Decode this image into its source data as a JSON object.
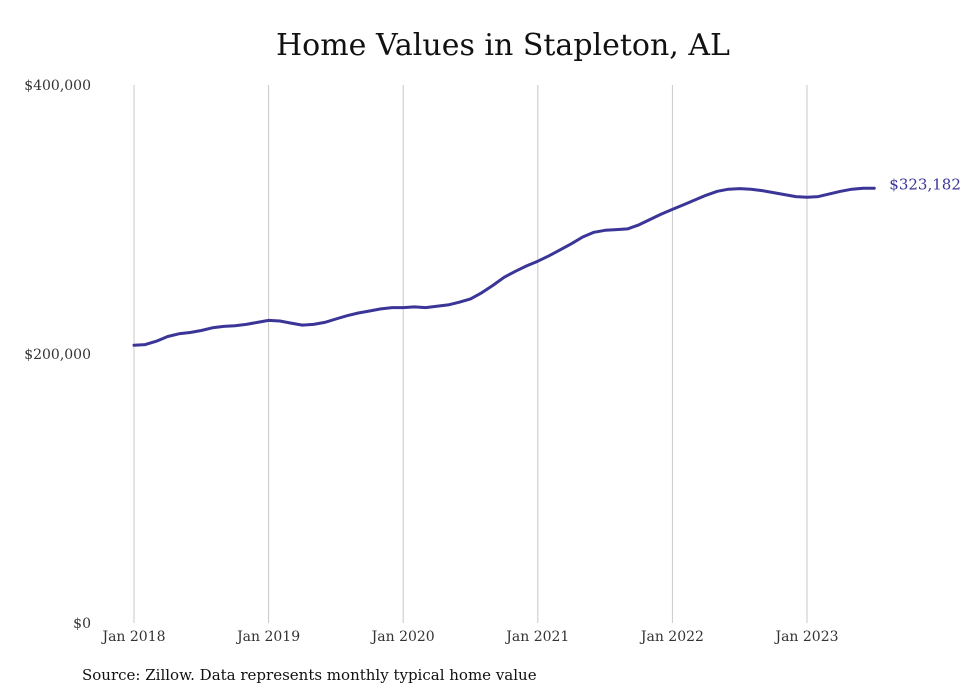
{
  "chart_data": {
    "type": "line",
    "title": "Home Values in Stapleton, AL",
    "source": "Source: Zillow. Data represents monthly typical home value",
    "xlabel": "",
    "ylabel": "",
    "ylim": [
      0,
      400000
    ],
    "y_ticks": [
      {
        "value": 0,
        "label": "$0"
      },
      {
        "value": 200000,
        "label": "$200,000"
      },
      {
        "value": 400000,
        "label": "$400,000"
      }
    ],
    "x_ticks": [
      {
        "label": "Jan 2018",
        "date": "2018-01"
      },
      {
        "label": "Jan 2019",
        "date": "2019-01"
      },
      {
        "label": "Jan 2020",
        "date": "2020-01"
      },
      {
        "label": "Jan 2021",
        "date": "2021-01"
      },
      {
        "label": "Jan 2022",
        "date": "2022-01"
      },
      {
        "label": "Jan 2023",
        "date": "2023-01"
      }
    ],
    "grid": "vertical",
    "line_color": "#3a3597",
    "end_label": "$323,182",
    "series": [
      {
        "x": [
          "2018-01",
          "2018-02",
          "2018-03",
          "2018-04",
          "2018-05",
          "2018-06",
          "2018-07",
          "2018-08",
          "2018-09",
          "2018-10",
          "2018-11",
          "2018-12",
          "2019-01",
          "2019-02",
          "2019-03",
          "2019-04",
          "2019-05",
          "2019-06",
          "2019-07",
          "2019-08",
          "2019-09",
          "2019-10",
          "2019-11",
          "2019-12",
          "2020-01",
          "2020-02",
          "2020-03",
          "2020-04",
          "2020-05",
          "2020-06",
          "2020-07",
          "2020-08",
          "2020-09",
          "2020-10",
          "2020-11",
          "2020-12",
          "2021-01",
          "2021-02",
          "2021-03",
          "2021-04",
          "2021-05",
          "2021-06",
          "2021-07",
          "2021-08",
          "2021-09",
          "2021-10",
          "2021-11",
          "2021-12",
          "2022-01",
          "2022-02",
          "2022-03",
          "2022-04",
          "2022-05",
          "2022-06",
          "2022-07",
          "2022-08",
          "2022-09",
          "2022-10",
          "2022-11",
          "2022-12",
          "2023-01",
          "2023-02",
          "2023-03",
          "2023-04",
          "2023-05",
          "2023-06",
          "2023-07"
        ],
        "values": [
          206500,
          207000,
          209500,
          213000,
          215000,
          216000,
          217500,
          219500,
          220500,
          221000,
          222000,
          223500,
          225000,
          224500,
          223000,
          221500,
          222000,
          223500,
          226000,
          228500,
          230500,
          232000,
          233500,
          234500,
          234500,
          235000,
          234500,
          235500,
          236500,
          238500,
          241000,
          245500,
          251000,
          257000,
          261500,
          265500,
          269000,
          273000,
          277500,
          282000,
          287000,
          290500,
          292000,
          292500,
          293000,
          296000,
          300000,
          304000,
          307500,
          311000,
          314500,
          318000,
          321000,
          322500,
          323000,
          322500,
          321500,
          320000,
          318500,
          317000,
          316500,
          317000,
          319000,
          321000,
          322500,
          323200,
          323182
        ]
      }
    ]
  }
}
